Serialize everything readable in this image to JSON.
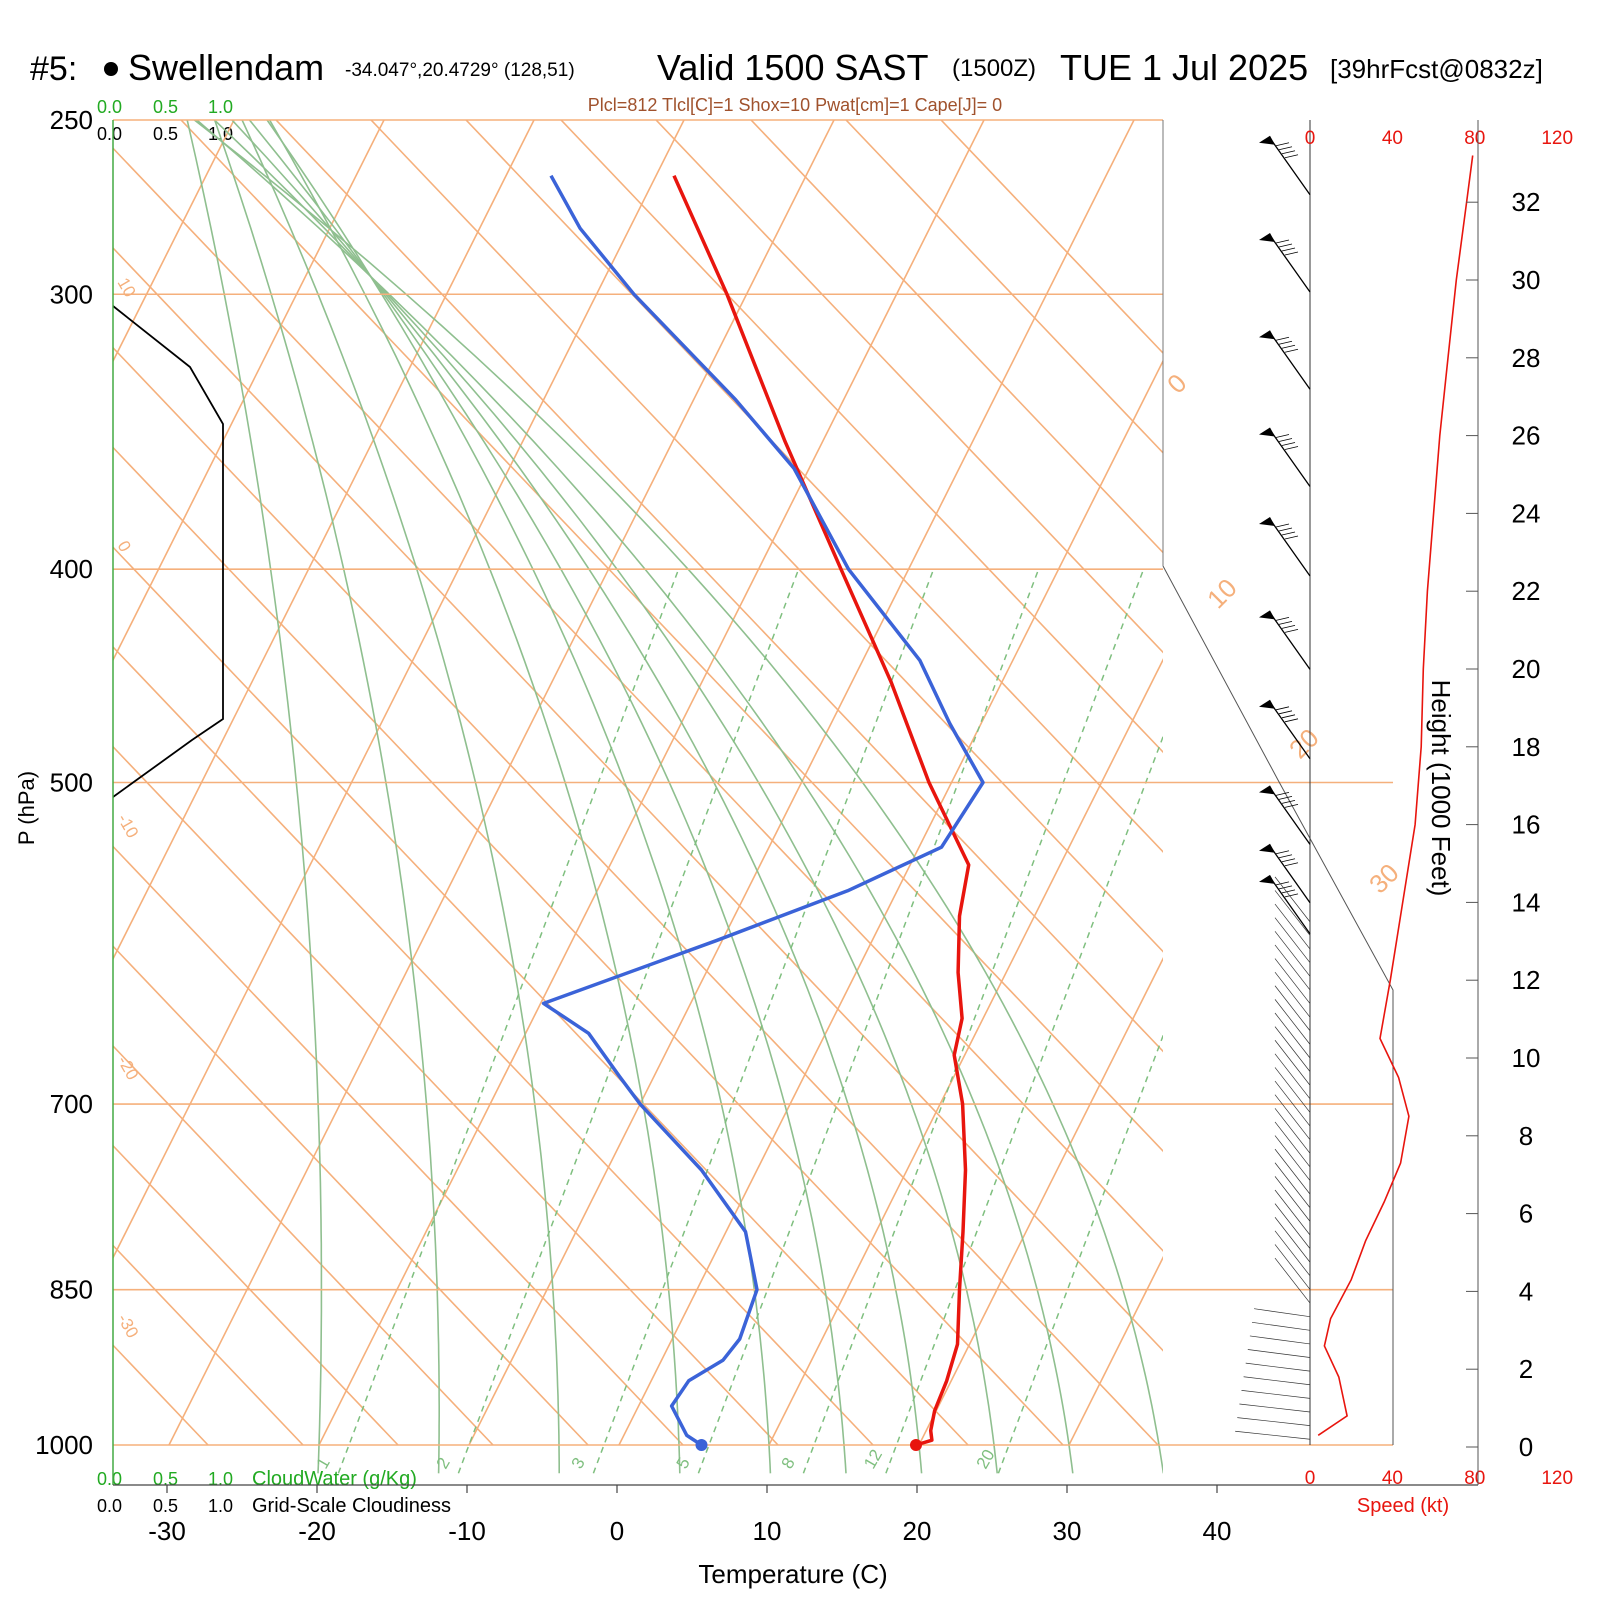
{
  "header": {
    "station_id": "#5:",
    "station_name": "Swellendam",
    "coords": "-34.047°,20.4729° (128,51)",
    "valid_main": "Valid 1500 SAST",
    "valid_z": "(1500Z)",
    "date": "TUE 1 Jul 2025",
    "forecast": "[39hrFcst@0832z]"
  },
  "indices_text": "Plcl=812 Tlcl[C]=1 Shox=10 Pwat[cm]=1 Cape[J]= 0",
  "colors": {
    "isotherm": "#f5b07c",
    "dry_adiabat": "#8fbf8f",
    "mixing_ratio": "#7fbf7f",
    "temperature": "#e8150e",
    "dewpoint": "#3b63d8",
    "cloud_label": "#22aa22",
    "indices": "#a0522d",
    "speed": "#e8150e"
  },
  "cloud_scale": {
    "cloudwater_ticks": [
      "0.0",
      "0.5",
      "1.0"
    ],
    "cloudiness_ticks": [
      "0.0",
      "0.5",
      "1.0"
    ],
    "cloudwater_label": "CloudWater (g/Kg)",
    "cloudiness_label": "Grid-Scale Cloudiness"
  },
  "chart_data": {
    "type": "skew-t",
    "xlabel": "Temperature (C)",
    "ylabel": "P (hPa)",
    "y2label": "Height (1000 Feet)",
    "speed_label": "Speed (kt)",
    "xlim": [
      -34,
      36
    ],
    "ylim_hpa": [
      1000,
      250
    ],
    "x_ticks": [
      -30,
      -20,
      -10,
      0,
      10,
      20,
      30,
      40
    ],
    "pressure_ticks": [
      1000,
      850,
      700,
      500,
      400,
      300,
      250
    ],
    "height_ticks_kft": [
      0,
      2,
      4,
      6,
      8,
      10,
      12,
      14,
      16,
      18,
      20,
      22,
      24,
      26,
      28,
      30,
      32
    ],
    "speed_ticks_kt": [
      0,
      40,
      80,
      120
    ],
    "isotherm_labels": [
      "-30",
      "-20",
      "-10",
      "0",
      "10",
      "20",
      "30"
    ],
    "mixing_ratio_labels": [
      "1",
      "2",
      "3",
      "5",
      "8",
      "12",
      "20"
    ],
    "temperature_profile": [
      {
        "p": 1000,
        "t": 19.8
      },
      {
        "p": 995,
        "t": 20.7
      },
      {
        "p": 985,
        "t": 20.3
      },
      {
        "p": 965,
        "t": 19.9
      },
      {
        "p": 935,
        "t": 19.7
      },
      {
        "p": 900,
        "t": 19.2
      },
      {
        "p": 850,
        "t": 17.5
      },
      {
        "p": 800,
        "t": 15.8
      },
      {
        "p": 750,
        "t": 13.9
      },
      {
        "p": 700,
        "t": 11.5
      },
      {
        "p": 665,
        "t": 9.3
      },
      {
        "p": 640,
        "t": 8.6
      },
      {
        "p": 610,
        "t": 6.8
      },
      {
        "p": 575,
        "t": 5.0
      },
      {
        "p": 545,
        "t": 3.9
      },
      {
        "p": 500,
        "t": -1.5
      },
      {
        "p": 450,
        "t": -7.4
      },
      {
        "p": 400,
        "t": -14.5
      },
      {
        "p": 350,
        "t": -22.5
      },
      {
        "p": 300,
        "t": -31.3
      },
      {
        "p": 265,
        "t": -38.8
      }
    ],
    "dewpoint_profile": [
      {
        "p": 1000,
        "t": 5.5
      },
      {
        "p": 990,
        "t": 4.2
      },
      {
        "p": 960,
        "t": 2.2
      },
      {
        "p": 935,
        "t": 2.5
      },
      {
        "p": 915,
        "t": 4.1
      },
      {
        "p": 895,
        "t": 4.5
      },
      {
        "p": 850,
        "t": 4.0
      },
      {
        "p": 800,
        "t": 1.3
      },
      {
        "p": 750,
        "t": -3.7
      },
      {
        "p": 700,
        "t": -10.0
      },
      {
        "p": 680,
        "t": -12.3
      },
      {
        "p": 650,
        "t": -15.8
      },
      {
        "p": 630,
        "t": -19.8
      },
      {
        "p": 590,
        "t": -10.4
      },
      {
        "p": 560,
        "t": -3.3
      },
      {
        "p": 535,
        "t": 1.5
      },
      {
        "p": 500,
        "t": 2.1
      },
      {
        "p": 470,
        "t": -2.1
      },
      {
        "p": 440,
        "t": -6.2
      },
      {
        "p": 400,
        "t": -14.0
      },
      {
        "p": 360,
        "t": -21.0
      },
      {
        "p": 335,
        "t": -27.2
      },
      {
        "p": 300,
        "t": -37.5
      },
      {
        "p": 280,
        "t": -43.3
      },
      {
        "p": 265,
        "t": -47.0
      }
    ],
    "surface_temperature_c": 19.8,
    "surface_dewpoint_c": 5.5,
    "wind_speed_profile_kt": [
      {
        "h_kft": 0.3,
        "v": 4
      },
      {
        "h_kft": 0.8,
        "v": 18
      },
      {
        "h_kft": 1.8,
        "v": 14
      },
      {
        "h_kft": 2.6,
        "v": 7
      },
      {
        "h_kft": 3.3,
        "v": 10
      },
      {
        "h_kft": 4.3,
        "v": 20
      },
      {
        "h_kft": 5.3,
        "v": 27
      },
      {
        "h_kft": 6.3,
        "v": 36
      },
      {
        "h_kft": 7.3,
        "v": 44
      },
      {
        "h_kft": 8.5,
        "v": 48
      },
      {
        "h_kft": 9.5,
        "v": 43
      },
      {
        "h_kft": 10.5,
        "v": 34
      },
      {
        "h_kft": 12,
        "v": 39
      },
      {
        "h_kft": 14,
        "v": 45
      },
      {
        "h_kft": 16,
        "v": 51
      },
      {
        "h_kft": 18,
        "v": 54
      },
      {
        "h_kft": 20,
        "v": 55
      },
      {
        "h_kft": 22,
        "v": 57
      },
      {
        "h_kft": 24,
        "v": 60
      },
      {
        "h_kft": 26,
        "v": 63
      },
      {
        "h_kft": 28,
        "v": 67
      },
      {
        "h_kft": 30,
        "v": 71
      },
      {
        "h_kft": 32,
        "v": 76
      },
      {
        "h_kft": 33.2,
        "v": 79
      }
    ],
    "wind_barb_heights_kft": [
      32.5,
      30,
      27.5,
      25,
      22.7,
      20.3,
      18,
      15.8,
      14.3,
      13.5,
      12.2,
      11,
      10,
      9,
      8,
      7,
      6,
      5,
      4,
      3,
      2.5,
      2,
      1.5,
      1
    ],
    "grid": true
  }
}
